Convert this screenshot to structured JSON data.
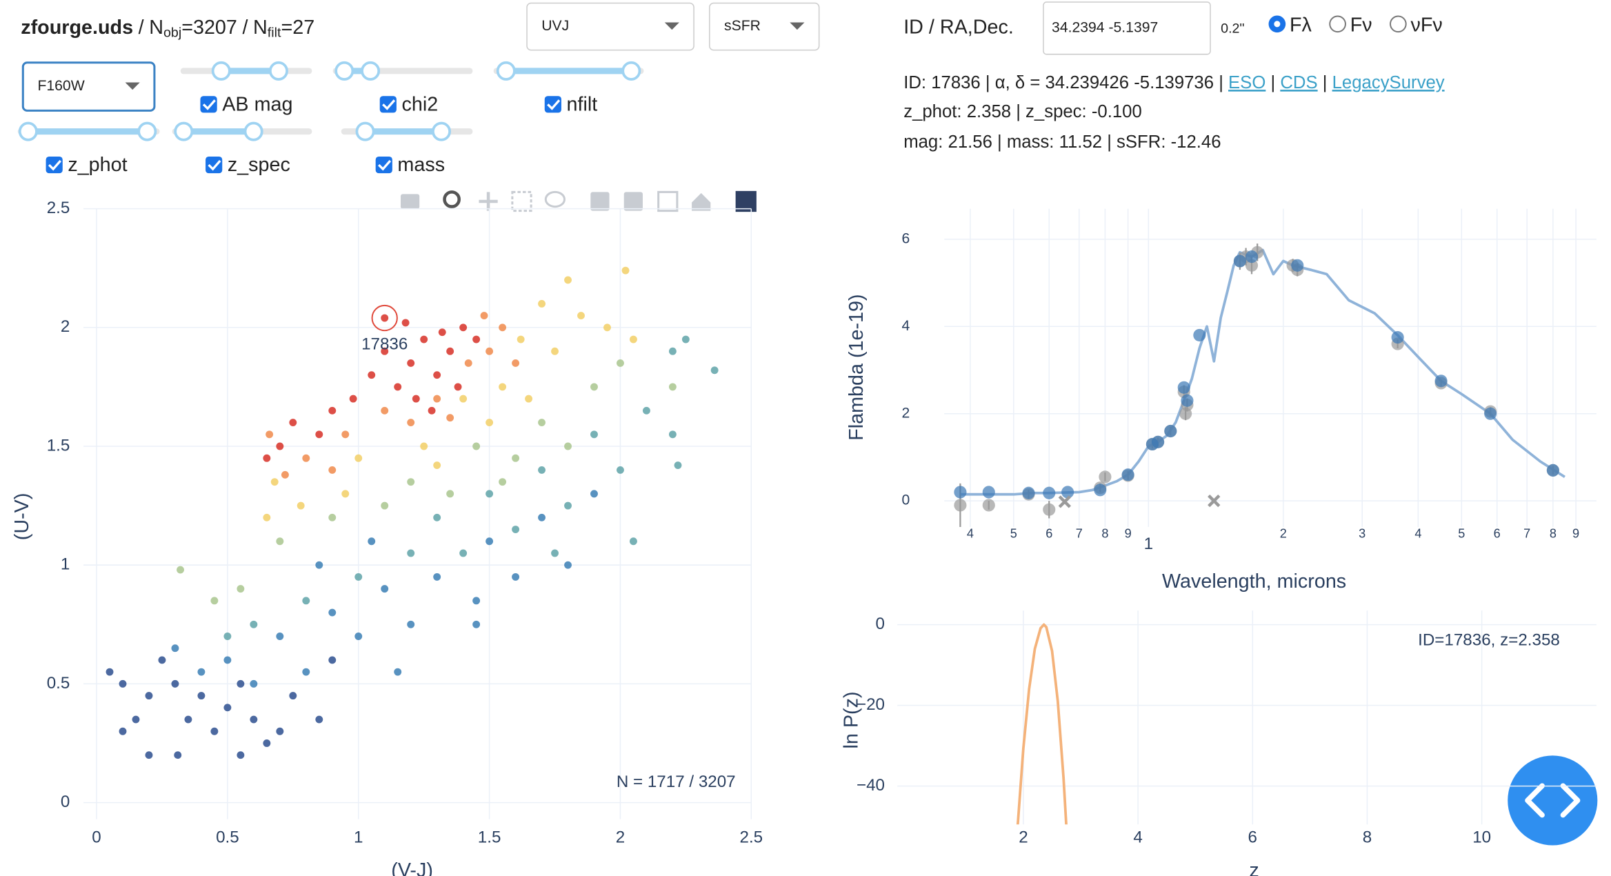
{
  "header": {
    "title": "zfourge.uds",
    "separator": "/",
    "equals": "=",
    "n_obj": {
      "symbol": "N",
      "sub": "obj",
      "value": 3207
    },
    "n_filt": {
      "symbol": "N",
      "sub": "filt",
      "value": 27
    }
  },
  "controls": {
    "dropdowns": [
      "UVJ",
      "sSFR",
      "F160W"
    ],
    "checkboxes": [
      "AB mag",
      "chi2",
      "nfilt",
      "z_phot",
      "z_spec",
      "mass"
    ]
  },
  "lookup": {
    "label": "ID / RA,Dec.",
    "input": "34.2394 -5.1397",
    "radius": "0.2\"",
    "radio": [
      "Fλ",
      "Fν",
      "νFν"
    ],
    "selected": 0
  },
  "info": {
    "line1": "ID: 17836 | α, δ = 34.239426 -5.139736 | ",
    "links": [
      "ESO",
      "CDS",
      "LegacySurvey"
    ],
    "link_separator": " | ",
    "line2": "z_phot: 2.358 | z_spec: -0.100",
    "line3": "mag: 21.56 | mass: 11.52 | sSFR: -12.46"
  },
  "chart_data": [
    {
      "type": "scatter",
      "x_label": "(V-J)",
      "y_label": "(U-V)",
      "note": "N = 1717 / 3207",
      "xlim": [
        -0.05,
        2.5
      ],
      "ylim": [
        -0.07,
        2.5
      ],
      "xticks": [
        0,
        0.5,
        1,
        1.5,
        2,
        2.5
      ],
      "yticks": [
        0,
        0.5,
        1,
        1.5,
        2,
        2.5
      ],
      "grid": true,
      "annotations": [
        {
          "text": "17836",
          "x": 1.1,
          "y": 2.04,
          "color": "#e0483a"
        }
      ],
      "series": [
        {
          "color": "#2d4f8f",
          "mode": "markers",
          "x": [
            0.3,
            0.4,
            0.5,
            0.6,
            0.7,
            0.45,
            0.35,
            0.2,
            0.15,
            0.2,
            0.31,
            0.55,
            0.65,
            0.1,
            0.05,
            0.25,
            0.85,
            0.75,
            0.9,
            0.55,
            0.1
          ],
          "values": [
            0.5,
            0.45,
            0.4,
            0.35,
            0.3,
            0.3,
            0.35,
            0.45,
            0.35,
            0.2,
            0.2,
            0.2,
            0.25,
            0.5,
            0.55,
            0.6,
            0.35,
            0.45,
            0.6,
            0.5,
            0.3
          ]
        },
        {
          "color": "#3b7fb5",
          "mode": "markers",
          "x": [
            1.1,
            1.3,
            1.5,
            1.7,
            1.9,
            0.9,
            0.7,
            0.5,
            0.4,
            1.0,
            1.2,
            1.45,
            1.6,
            1.8,
            0.6,
            0.8,
            1.15,
            1.45,
            0.3,
            0.85,
            1.05
          ],
          "values": [
            0.9,
            0.95,
            1.1,
            1.2,
            1.3,
            0.8,
            0.7,
            0.6,
            0.55,
            0.7,
            0.75,
            0.85,
            0.95,
            1.0,
            0.5,
            0.55,
            0.55,
            0.75,
            0.65,
            1.0,
            1.1
          ]
        },
        {
          "color": "#5fa3a8",
          "mode": "markers",
          "x": [
            1.3,
            1.5,
            1.7,
            1.9,
            2.1,
            2.2,
            2.25,
            2.36,
            2.2,
            2.0,
            1.8,
            1.6,
            1.4,
            1.2,
            1.0,
            0.8,
            0.6,
            0.5,
            2.22,
            2.05,
            1.75
          ],
          "values": [
            1.2,
            1.3,
            1.4,
            1.55,
            1.65,
            1.9,
            1.95,
            1.82,
            1.55,
            1.4,
            1.25,
            1.15,
            1.05,
            1.05,
            0.95,
            0.85,
            0.75,
            0.7,
            1.42,
            1.1,
            1.05
          ]
        },
        {
          "color": "#a9c68e",
          "mode": "markers",
          "x": [
            1.2,
            1.45,
            1.7,
            1.9,
            2.0,
            1.6,
            1.1,
            0.9,
            0.7,
            0.55,
            0.45,
            1.35,
            1.8,
            2.2,
            0.32,
            1.55
          ],
          "values": [
            1.35,
            1.5,
            1.6,
            1.75,
            1.85,
            1.45,
            1.25,
            1.2,
            1.1,
            0.9,
            0.85,
            1.3,
            1.5,
            1.75,
            0.98,
            1.35
          ]
        },
        {
          "color": "#f2cf66",
          "mode": "markers",
          "x": [
            1.4,
            1.55,
            1.62,
            1.7,
            1.75,
            1.85,
            1.8,
            2.02,
            1.95,
            1.25,
            1.0,
            0.78,
            0.68,
            0.65,
            1.5,
            1.65,
            2.05,
            1.3,
            0.95
          ],
          "values": [
            1.7,
            1.75,
            1.95,
            2.1,
            1.9,
            2.05,
            2.2,
            2.24,
            2.0,
            1.5,
            1.45,
            1.25,
            1.35,
            1.2,
            1.6,
            1.7,
            1.95,
            1.42,
            1.3
          ]
        },
        {
          "color": "#f08a4b",
          "mode": "markers",
          "x": [
            1.3,
            1.42,
            1.5,
            1.55,
            1.2,
            0.95,
            0.8,
            0.72,
            1.6,
            1.35,
            1.1,
            1.48,
            0.66,
            0.9
          ],
          "values": [
            1.7,
            1.85,
            1.9,
            2.0,
            1.6,
            1.55,
            1.45,
            1.38,
            1.85,
            1.62,
            1.65,
            2.05,
            1.55,
            1.4
          ]
        },
        {
          "color": "#d73027",
          "mode": "markers",
          "x": [
            1.1,
            1.2,
            1.25,
            1.3,
            1.35,
            1.4,
            1.15,
            1.22,
            1.05,
            0.98,
            0.9,
            0.85,
            0.75,
            0.7,
            0.65,
            1.32,
            1.45,
            1.28,
            1.18,
            1.38,
            1.1
          ],
          "values": [
            1.9,
            1.85,
            1.95,
            1.8,
            1.9,
            2.0,
            1.75,
            1.7,
            1.8,
            1.7,
            1.65,
            1.55,
            1.6,
            1.5,
            1.45,
            1.98,
            1.95,
            1.65,
            2.02,
            1.75,
            2.04
          ]
        }
      ]
    },
    {
      "type": "line",
      "x_label": "Wavelength, microns",
      "y_label": "Flambda (1e-19)",
      "xlog": true,
      "xlim": [
        0.35,
        10
      ],
      "ylim": [
        -0.6,
        6.7
      ],
      "grid": true,
      "yticks": [
        0,
        2,
        4,
        6
      ],
      "xticks": [
        {
          "value": 0.4,
          "label": "4"
        },
        {
          "value": 0.5,
          "label": "5"
        },
        {
          "value": 0.6,
          "label": "6"
        },
        {
          "value": 0.7,
          "label": "7"
        },
        {
          "value": 0.8,
          "label": "8"
        },
        {
          "value": 0.9,
          "label": "9"
        },
        1,
        2,
        3,
        4,
        5,
        6,
        7,
        8,
        9
      ],
      "series": [
        {
          "color": "#8fb3d9",
          "mode": "lines",
          "x": [
            0.38,
            0.45,
            0.5,
            0.55,
            0.6,
            0.7,
            0.75,
            0.8,
            0.85,
            0.9,
            0.95,
            1.0,
            1.05,
            1.1,
            1.15,
            1.2,
            1.25,
            1.3,
            1.35,
            1.4,
            1.45,
            1.5,
            1.55,
            1.6,
            1.7,
            1.8,
            1.9,
            2.0,
            2.1,
            2.3,
            2.5,
            2.8,
            3.2,
            3.6,
            4.0,
            4.5,
            5.0,
            5.8,
            6.5,
            7.5,
            8.5
          ],
          "values": [
            0.15,
            0.15,
            0.15,
            0.18,
            0.18,
            0.2,
            0.25,
            0.35,
            0.45,
            0.6,
            0.9,
            1.25,
            1.35,
            1.5,
            1.8,
            2.3,
            2.8,
            3.5,
            4.0,
            3.2,
            4.2,
            4.8,
            5.4,
            5.7,
            5.6,
            5.75,
            5.2,
            5.5,
            5.4,
            5.3,
            5.2,
            4.6,
            4.3,
            3.8,
            3.3,
            2.75,
            2.45,
            2.0,
            1.4,
            0.9,
            0.55
          ]
        },
        {
          "color": "#9a9a9a",
          "mode": "markers",
          "x": [
            0.38,
            0.44,
            0.54,
            0.6,
            0.78,
            0.8,
            0.9,
            1.02,
            1.05,
            1.12,
            1.2,
            1.21,
            1.22,
            1.6,
            1.65,
            1.7,
            1.75,
            2.1,
            2.15,
            3.6,
            4.5,
            5.8,
            8.0
          ],
          "values": [
            -0.1,
            -0.1,
            0.15,
            -0.2,
            0.3,
            0.55,
            0.58,
            1.3,
            1.35,
            1.6,
            2.5,
            2.0,
            2.2,
            5.5,
            5.6,
            5.4,
            5.7,
            5.4,
            5.3,
            3.6,
            2.7,
            2.05,
            0.7
          ],
          "errors": [
            0.5,
            0.1,
            0.1,
            0.2,
            0.1,
            0.1,
            0.1,
            0.1,
            0.1,
            0.1,
            0.15,
            0.15,
            0.15,
            0.2,
            0.2,
            0.2,
            0.2,
            0.15,
            0.15,
            0.1,
            0.08,
            0.1,
            0.1
          ]
        },
        {
          "color": "#3a78b5",
          "mode": "markers",
          "x": [
            0.38,
            0.44,
            0.54,
            0.6,
            0.66,
            0.78,
            0.9,
            1.02,
            1.05,
            1.12,
            1.2,
            1.22,
            1.3,
            1.6,
            1.7,
            2.15,
            3.6,
            4.5,
            5.8,
            8.0
          ],
          "values": [
            0.2,
            0.2,
            0.18,
            0.18,
            0.2,
            0.25,
            0.6,
            1.3,
            1.35,
            1.6,
            2.6,
            2.3,
            3.8,
            5.5,
            5.6,
            5.4,
            3.75,
            2.75,
            2.0,
            0.7
          ]
        },
        {
          "color": "#9a9a9a",
          "mode": "x-markers",
          "x": [
            0.65,
            1.4
          ],
          "values": [
            -0.02,
            0.0
          ]
        }
      ]
    },
    {
      "type": "line",
      "x_label": "z",
      "y_label": "ln P(z)",
      "note": "ID=17836, z=2.358",
      "xlim": [
        -0.2,
        12
      ],
      "ylim": [
        -49.5,
        3.5
      ],
      "grid": true,
      "xticks": [
        2,
        4,
        6,
        8,
        10
      ],
      "yticks": [
        0,
        {
          "value": -20,
          "label": "−20"
        },
        {
          "value": -40,
          "label": "−40"
        }
      ],
      "series": [
        {
          "color": "#f4b27a",
          "mode": "lines",
          "x": [
            1.9,
            2.0,
            2.1,
            2.2,
            2.3,
            2.358,
            2.4,
            2.5,
            2.6,
            2.7,
            2.75
          ],
          "values": [
            -50,
            -30.6,
            -16,
            -6,
            -0.9,
            0,
            -0.6,
            -6.5,
            -19,
            -38,
            -50
          ]
        }
      ]
    }
  ]
}
